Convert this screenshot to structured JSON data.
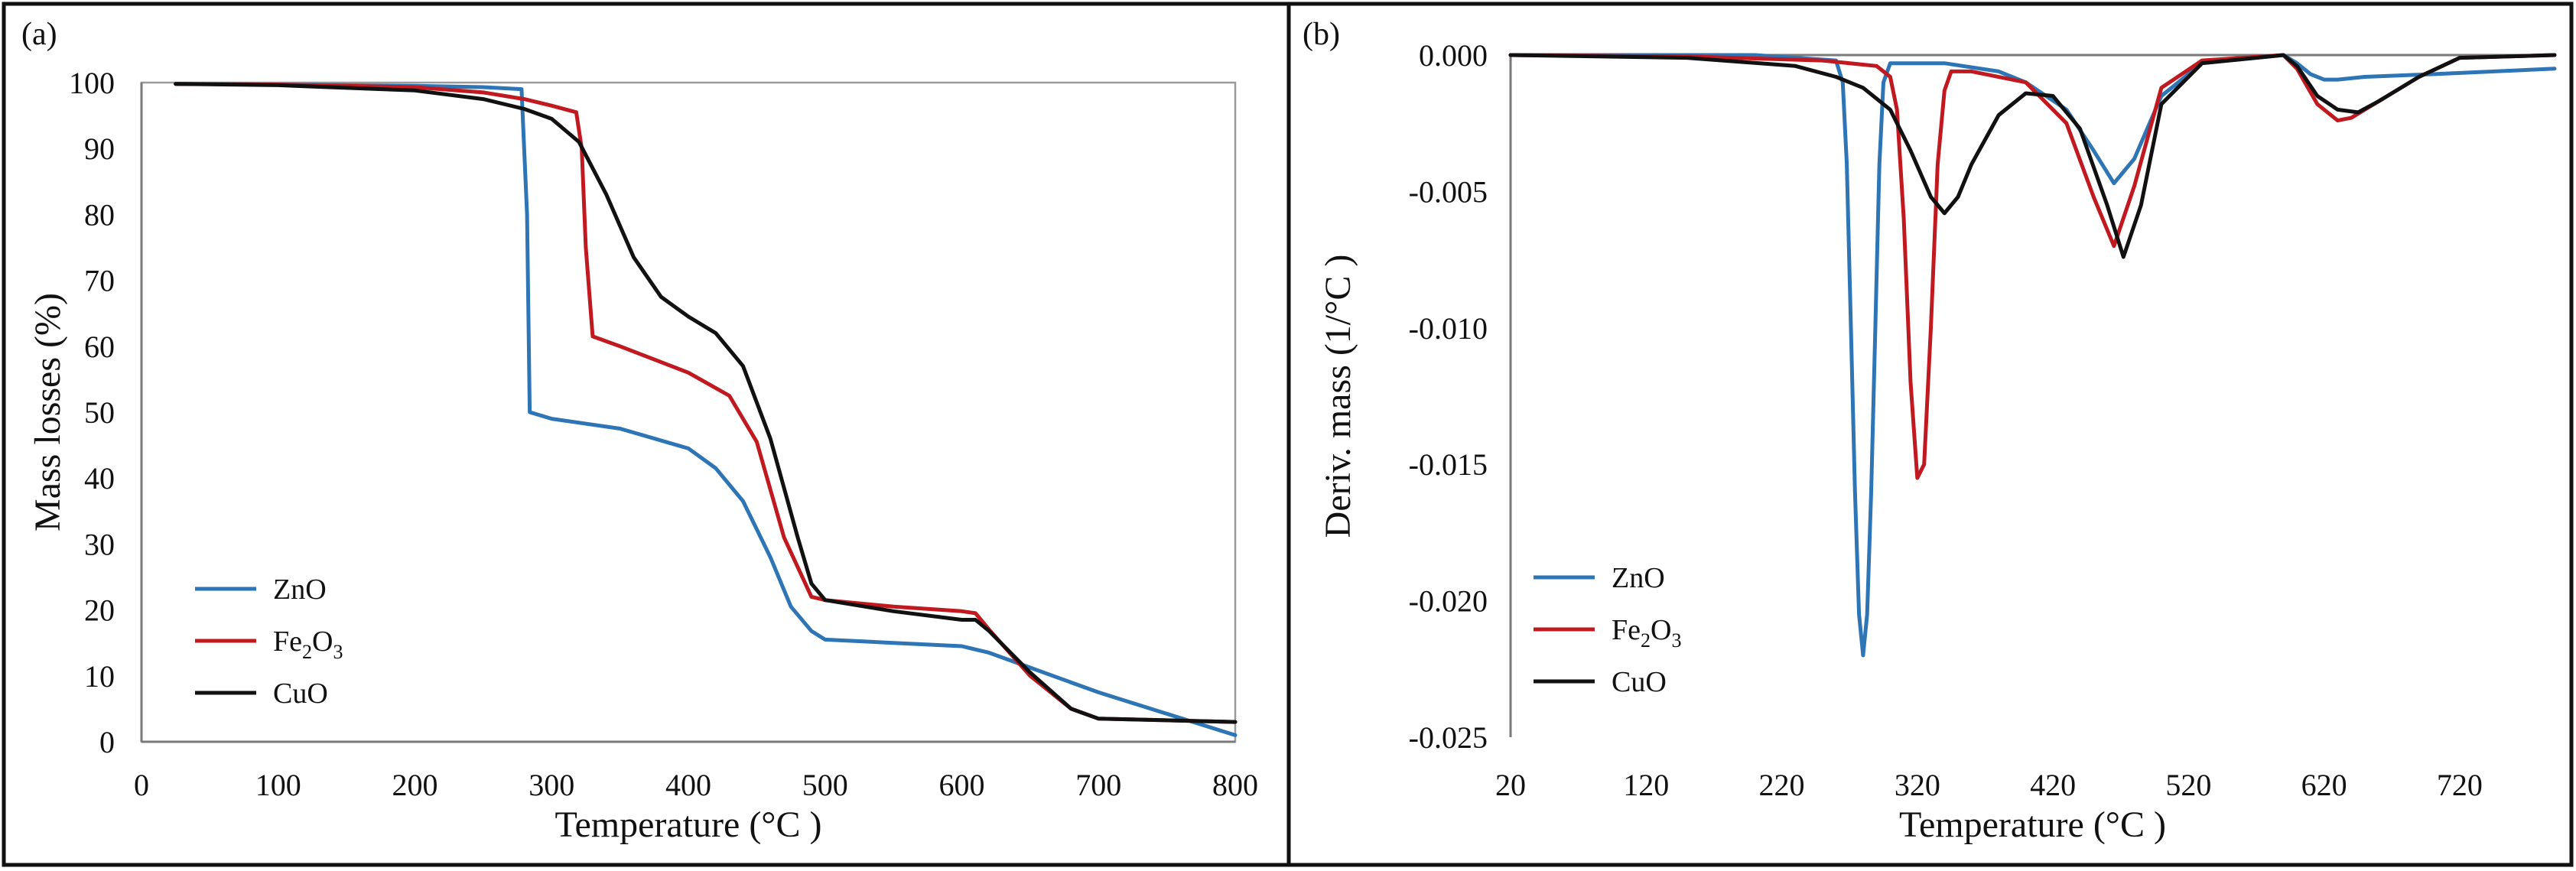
{
  "colors": {
    "ZnO": "#2e75b6",
    "Fe2O3": "#c0191f",
    "CuO": "#111111"
  },
  "chart_data": [
    {
      "type": "line",
      "panel_label": "(a)",
      "xlabel": "Temperature (°C )",
      "ylabel": "Mass losses (%)",
      "xlim": [
        0,
        800
      ],
      "ylim": [
        0,
        100
      ],
      "x_ticks": [
        0,
        100,
        200,
        300,
        400,
        500,
        600,
        700,
        800
      ],
      "y_ticks": [
        0,
        10,
        20,
        30,
        40,
        50,
        60,
        70,
        80,
        90,
        100
      ],
      "y_tick_labels": [
        "0",
        "10",
        "20",
        "30",
        "40",
        "50",
        "60",
        "70",
        "80",
        "90",
        "100"
      ],
      "legend_position": "bottom-left",
      "series": [
        {
          "name": "ZnO",
          "label_main": "ZnO",
          "x": [
            25,
            100,
            200,
            250,
            278,
            282,
            284,
            300,
            350,
            400,
            420,
            440,
            460,
            475,
            490,
            500,
            550,
            600,
            620,
            700,
            800
          ],
          "y": [
            99.8,
            99.7,
            99.5,
            99.3,
            99.0,
            80,
            50,
            49,
            47.5,
            44.5,
            41.5,
            36.5,
            28,
            20.5,
            16.8,
            15.5,
            15,
            14.5,
            13.5,
            7.5,
            1
          ]
        },
        {
          "name": "Fe2O3",
          "label_main": "Fe",
          "sub1": "2",
          "mid": "O",
          "sub2": "3",
          "x": [
            25,
            100,
            200,
            250,
            280,
            300,
            318,
            322,
            325,
            330,
            350,
            400,
            430,
            450,
            470,
            490,
            500,
            550,
            600,
            610,
            620,
            650,
            680,
            700,
            800
          ],
          "y": [
            99.8,
            99.7,
            99.3,
            98.5,
            97.5,
            96.5,
            95.5,
            90,
            75,
            61.5,
            60,
            56,
            52.5,
            45.5,
            31,
            22,
            21.5,
            20.5,
            19.8,
            19.5,
            17,
            10,
            5,
            3.5,
            3
          ]
        },
        {
          "name": "CuO",
          "label_main": "CuO",
          "x": [
            25,
            100,
            200,
            250,
            280,
            300,
            320,
            340,
            360,
            380,
            400,
            420,
            440,
            460,
            480,
            490,
            500,
            550,
            600,
            610,
            620,
            650,
            680,
            700,
            800
          ],
          "y": [
            99.8,
            99.6,
            98.8,
            97.5,
            96,
            94.5,
            91,
            83,
            73.5,
            67.5,
            64.5,
            62,
            57,
            46,
            31,
            24,
            21.5,
            19.8,
            18.5,
            18.5,
            16.8,
            10.5,
            5,
            3.5,
            3
          ]
        }
      ]
    },
    {
      "type": "line",
      "panel_label": "(b)",
      "xlabel": "Temperature (°C )",
      "ylabel": "Deriv. mass (1/°C )",
      "xlim": [
        20,
        790
      ],
      "ylim": [
        -0.025,
        0
      ],
      "x_ticks": [
        20,
        120,
        220,
        320,
        420,
        520,
        620,
        720
      ],
      "y_ticks": [
        0,
        -0.005,
        -0.01,
        -0.015,
        -0.02,
        -0.025
      ],
      "y_tick_labels": [
        "0.000",
        "-0.005",
        "-0.010",
        "-0.015",
        "-0.020",
        "-0.025"
      ],
      "legend_position": "bottom-left",
      "series": [
        {
          "name": "ZnO",
          "label_main": "ZnO",
          "x": [
            20,
            200,
            260,
            265,
            268,
            271,
            274,
            277,
            280,
            283,
            286,
            289,
            292,
            295,
            300,
            340,
            380,
            400,
            430,
            450,
            465,
            480,
            500,
            530,
            590,
            600,
            610,
            620,
            630,
            650,
            700,
            790
          ],
          "y": [
            0,
            0,
            -0.0002,
            -0.001,
            -0.004,
            -0.01,
            -0.016,
            -0.0205,
            -0.022,
            -0.0205,
            -0.016,
            -0.01,
            -0.004,
            -0.001,
            -0.0003,
            -0.0003,
            -0.0006,
            -0.001,
            -0.002,
            -0.0035,
            -0.0047,
            -0.0038,
            -0.0015,
            -0.0003,
            0,
            -0.0003,
            -0.0007,
            -0.0009,
            -0.0009,
            -0.0008,
            -0.0007,
            -0.0005
          ]
        },
        {
          "name": "Fe2O3",
          "label_main": "Fe",
          "sub1": "2",
          "mid": "O",
          "sub2": "3",
          "x": [
            20,
            150,
            250,
            290,
            300,
            305,
            310,
            315,
            320,
            325,
            330,
            335,
            340,
            345,
            360,
            400,
            430,
            450,
            465,
            480,
            500,
            530,
            590,
            600,
            615,
            630,
            640,
            660,
            690,
            720,
            790
          ],
          "y": [
            0,
            -5e-05,
            -0.0002,
            -0.0004,
            -0.0008,
            -0.002,
            -0.006,
            -0.012,
            -0.0155,
            -0.015,
            -0.01,
            -0.004,
            -0.0013,
            -0.0006,
            -0.0006,
            -0.001,
            -0.0025,
            -0.0052,
            -0.007,
            -0.0048,
            -0.0012,
            -0.0002,
            0,
            -0.0005,
            -0.0018,
            -0.0024,
            -0.0023,
            -0.0017,
            -0.0008,
            -0.0001,
            0
          ]
        },
        {
          "name": "CuO",
          "label_main": "CuO",
          "x": [
            20,
            150,
            230,
            260,
            280,
            300,
            315,
            330,
            340,
            350,
            360,
            380,
            400,
            420,
            440,
            460,
            472,
            485,
            500,
            530,
            590,
            600,
            615,
            630,
            645,
            660,
            690,
            720,
            790
          ],
          "y": [
            0,
            -0.0001,
            -0.0004,
            -0.0008,
            -0.0012,
            -0.002,
            -0.0035,
            -0.0052,
            -0.0058,
            -0.0052,
            -0.004,
            -0.0022,
            -0.0014,
            -0.0015,
            -0.0027,
            -0.0055,
            -0.0074,
            -0.0055,
            -0.0018,
            -0.0003,
            0,
            -0.0004,
            -0.0015,
            -0.002,
            -0.0021,
            -0.0017,
            -0.0008,
            -0.0001,
            0
          ]
        }
      ]
    }
  ]
}
